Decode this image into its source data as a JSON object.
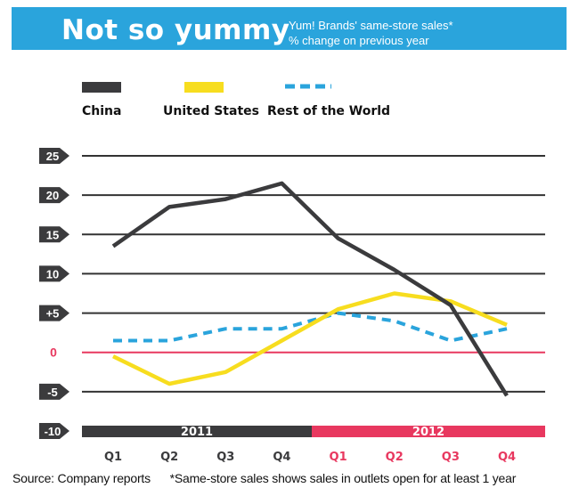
{
  "header": {
    "title": "Not so yummy",
    "subtitle_line1": "Yum! Brands' same-store sales*",
    "subtitle_line2": "% change on previous year"
  },
  "colors": {
    "banner": "#2aa4dc",
    "china": "#3b3b3d",
    "united_states": "#f7dd1f",
    "rest_of_world": "#2aa4dc",
    "zero_line": "#e8385f",
    "year_2011": "#3b3b3d",
    "year_2012": "#e8385f"
  },
  "footer": {
    "source": "Source: Company reports",
    "note": "*Same-store sales shows sales in outlets open for at least 1 year"
  },
  "chart_data": {
    "type": "line",
    "title": "Not so yummy",
    "subtitle": "Yum! Brands' same-store sales* % change on previous year",
    "categories": [
      "Q1",
      "Q2",
      "Q3",
      "Q4",
      "Q1",
      "Q2",
      "Q3",
      "Q4"
    ],
    "year_groups": [
      {
        "label": "2011",
        "quarters": 4
      },
      {
        "label": "2012",
        "quarters": 4
      }
    ],
    "y_ticks": [
      "25",
      "20",
      "15",
      "10",
      "+5",
      "0",
      "-5",
      "-10"
    ],
    "y_tick_values": [
      25,
      20,
      15,
      10,
      5,
      0,
      -5,
      -10
    ],
    "ylim": [
      -10,
      25
    ],
    "grid": true,
    "legend_position": "top-left",
    "series": [
      {
        "name": "China",
        "style": "solid",
        "values": [
          13.5,
          18.5,
          19.5,
          21.5,
          14.5,
          10.5,
          6,
          -5.5
        ]
      },
      {
        "name": "United States",
        "style": "solid",
        "values": [
          -0.5,
          -4,
          -2.5,
          1.5,
          5.5,
          7.5,
          6.5,
          3.5
        ]
      },
      {
        "name": "Rest of the World",
        "style": "dashed",
        "values": [
          1.5,
          1.5,
          3,
          3,
          5,
          4,
          1.5,
          3
        ]
      }
    ]
  }
}
